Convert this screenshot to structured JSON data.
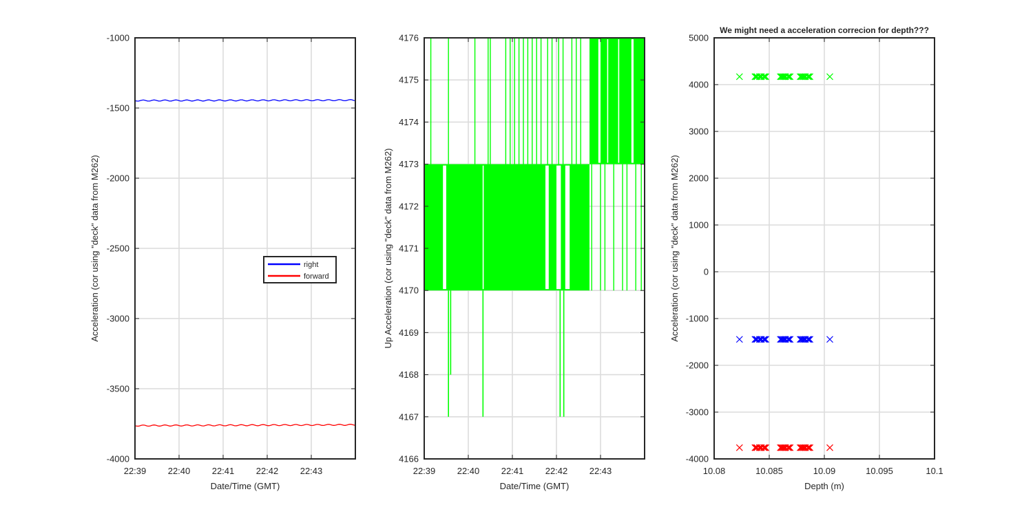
{
  "colors": {
    "right": "#0000ff",
    "forward": "#ff0000",
    "up": "#00ff00",
    "axis": "#262626",
    "grid": "#dcdcdc"
  },
  "chart_data": [
    {
      "type": "line",
      "title": "",
      "xlabel": "Date/Time (GMT)",
      "ylabel": "Acceleration (cor using \"deck\" data from M262)",
      "x_ticks": [
        "22:39",
        "22:40",
        "22:41",
        "22:42",
        "22:43"
      ],
      "x_range": [
        "22:39:00",
        "22:44:00"
      ],
      "y_ticks": [
        -1000,
        -1500,
        -2000,
        -2500,
        -3000,
        -3500,
        -4000
      ],
      "ylim": [
        -4000,
        -1000
      ],
      "grid": true,
      "legend": {
        "placement": "center-right",
        "entries": [
          "right",
          "forward"
        ]
      },
      "series": [
        {
          "name": "right",
          "color": "#0000ff",
          "x": [
            "22:39:00",
            "22:44:00"
          ],
          "y": [
            -1447,
            -1444
          ]
        },
        {
          "name": "forward",
          "color": "#ff0000",
          "x": [
            "22:39:00",
            "22:44:00"
          ],
          "y": [
            -3763,
            -3757
          ]
        }
      ]
    },
    {
      "type": "line",
      "title": "",
      "xlabel": "Date/Time (GMT)",
      "ylabel": "Up Acceleration (cor using \"deck\" data from M262)",
      "x_ticks": [
        "22:39",
        "22:40",
        "22:41",
        "22:42",
        "22:43"
      ],
      "x_range": [
        "22:39:00",
        "22:44:00"
      ],
      "y_ticks": [
        4176,
        4175,
        4174,
        4173,
        4172,
        4171,
        4170,
        4169,
        4168,
        4167,
        4166
      ],
      "ylim": [
        4166,
        4176
      ],
      "grid": true,
      "series": [
        {
          "color": "#00ff00",
          "x": [
            "22:39:00",
            "22:42:45",
            "22:44:00"
          ],
          "y_band": [
            [
              4170,
              4173
            ],
            [
              4173,
              4176
            ]
          ],
          "spikes": [
            {
              "x": "22:39:33",
              "y": 4167
            },
            {
              "x": "22:39:36",
              "y": 4168
            },
            {
              "x": "22:40:20",
              "y": 4167
            },
            {
              "x": "22:42:05",
              "y": 4167
            },
            {
              "x": "22:42:10",
              "y": 4167
            }
          ]
        }
      ]
    },
    {
      "type": "scatter",
      "title": "We might need a acceleration correcion for depth???",
      "xlabel": "Depth (m)",
      "ylabel": "Acceleration (cor using \"deck\" data from M262)",
      "x_ticks": [
        "10.08",
        "10.085",
        "10.09",
        "10.095",
        "10.1"
      ],
      "xlim": [
        10.08,
        10.1
      ],
      "y_ticks": [
        5000,
        4000,
        3000,
        2000,
        1000,
        0,
        -1000,
        -2000,
        -3000,
        -4000
      ],
      "ylim": [
        -4000,
        5000
      ],
      "grid": true,
      "marker": "x",
      "x": [
        10.0823,
        10.0838,
        10.0842,
        10.0846,
        10.0861,
        10.0864,
        10.0868,
        10.0879,
        10.0882,
        10.0886,
        10.0905
      ],
      "series": [
        {
          "color": "#00ff00",
          "y": 4170
        },
        {
          "color": "#0000ff",
          "y": -1445
        },
        {
          "color": "#ff0000",
          "y": -3760
        }
      ]
    }
  ]
}
